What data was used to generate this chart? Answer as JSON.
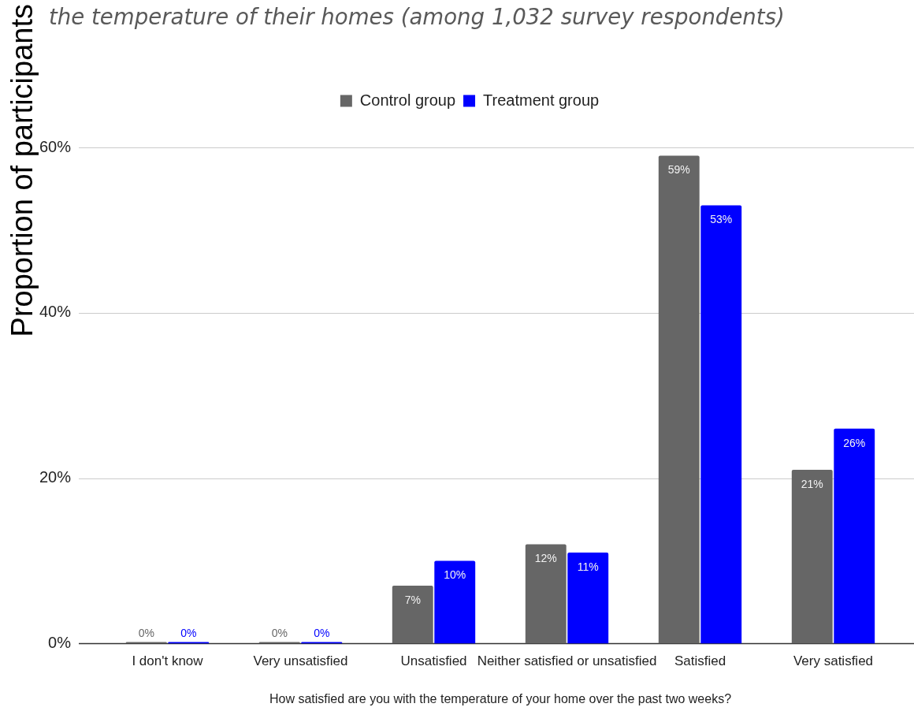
{
  "chart_data": {
    "type": "bar",
    "title": "the temperature of their homes (among 1,032 survey respondents)",
    "xlabel": "How satisfied are you with the temperature of your home over the past two weeks?",
    "ylabel": "Proportion of participants",
    "categories": [
      "I don't know",
      "Very unsatisfied",
      "Unsatisfied",
      "Neither satisfied or unsatisfied",
      "Satisfied",
      "Very satisfied"
    ],
    "series": [
      {
        "name": "Control group",
        "color": "#666666",
        "values": [
          0,
          0,
          7,
          12,
          59,
          21
        ],
        "value_labels": [
          "0%",
          "0%",
          "7%",
          "12%",
          "59%",
          "21%"
        ]
      },
      {
        "name": "Treatment group",
        "color": "#0000ff",
        "values": [
          0,
          0,
          10,
          11,
          53,
          26
        ],
        "value_labels": [
          "0%",
          "0%",
          "10%",
          "11%",
          "53%",
          "26%"
        ]
      }
    ],
    "ylim": [
      0,
      60
    ],
    "yticks": [
      {
        "value": 0,
        "label": "0%"
      },
      {
        "value": 20,
        "label": "20%"
      },
      {
        "value": 40,
        "label": "40%"
      },
      {
        "value": 60,
        "label": "60%"
      }
    ],
    "grid": "y",
    "legend": "top"
  }
}
